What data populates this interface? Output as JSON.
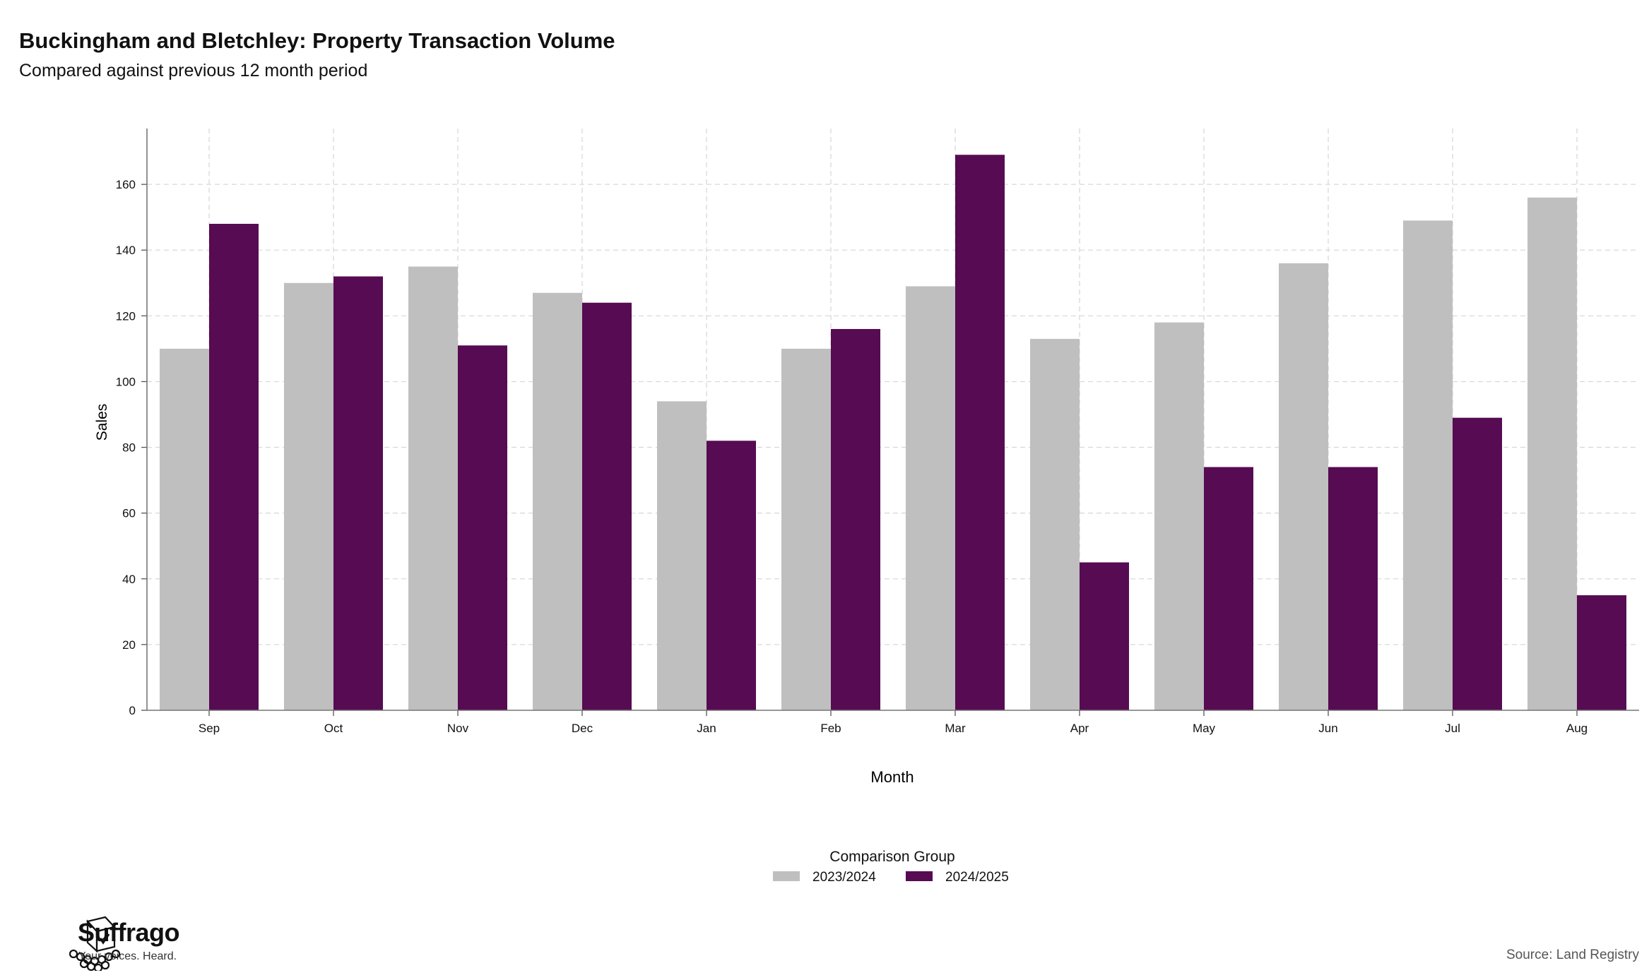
{
  "header": {
    "title": "Buckingham and Bletchley: Property Transaction Volume",
    "subtitle": "Compared against previous 12 month period"
  },
  "chart_data": {
    "type": "bar",
    "title": "Buckingham and Bletchley: Property Transaction Volume",
    "subtitle": "Compared against previous 12 month period",
    "xlabel": "Month",
    "ylabel": "Sales",
    "categories": [
      "Sep",
      "Oct",
      "Nov",
      "Dec",
      "Jan",
      "Feb",
      "Mar",
      "Apr",
      "May",
      "Jun",
      "Jul",
      "Aug"
    ],
    "series": [
      {
        "name": "2023/2024",
        "color": "#bfbfbf",
        "values": [
          110,
          130,
          135,
          127,
          94,
          110,
          129,
          113,
          118,
          136,
          149,
          156
        ]
      },
      {
        "name": "2024/2025",
        "color": "#560b52",
        "values": [
          148,
          132,
          111,
          124,
          82,
          116,
          169,
          45,
          74,
          74,
          89,
          35
        ]
      }
    ],
    "ylim": [
      0,
      177
    ],
    "yticks": [
      0,
      20,
      40,
      60,
      80,
      100,
      120,
      140,
      160
    ],
    "grid": true,
    "legend": {
      "title": "Comparison Group",
      "placement": "bottom-center"
    }
  },
  "branding": {
    "name": "Suffrago",
    "tagline": "Your voices. Heard.",
    "icon": "ballot-box-crowd-icon"
  },
  "footer": {
    "source": "Source: Land Registry"
  }
}
